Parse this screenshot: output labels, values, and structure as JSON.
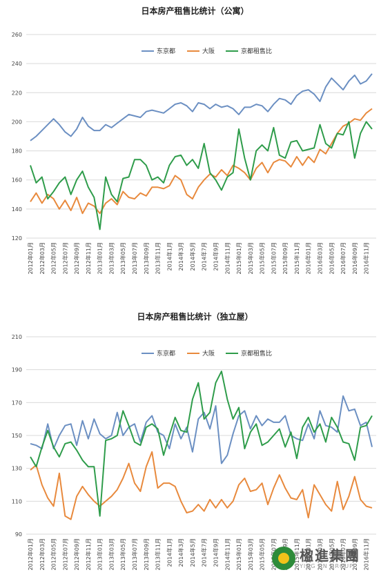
{
  "chart_data": [
    {
      "type": "line",
      "title": "日本房产租售比统计（公寓）",
      "ylim": [
        120,
        260
      ],
      "yticks": [
        120,
        140,
        160,
        180,
        200,
        220,
        240,
        260
      ],
      "grid": true,
      "legend": "top-right",
      "x": [
        "2012年01月",
        "2012年02月",
        "2012年03月",
        "2012年04月",
        "2012年05月",
        "2012年06月",
        "2012年07月",
        "2012年08月",
        "2012年09月",
        "2012年10月",
        "2012年11月",
        "2012年12月",
        "2013年01月",
        "2013年02月",
        "2013年03月",
        "2013年04月",
        "2013年05月",
        "2013年06月",
        "2013年07月",
        "2013年08月",
        "2013年09月",
        "2013年10月",
        "2013年11月",
        "2013年12月",
        "2014年1月",
        "2014年2月",
        "2014年3月",
        "2014年4月",
        "2014年5月",
        "2014年6月",
        "2014年7月",
        "2014年8月",
        "2014年9月",
        "2014年10月",
        "2014年11月",
        "2014年12月",
        "2015年01月",
        "2015年02月",
        "2015年03月",
        "2015年04月",
        "2015年05月",
        "2015年06月",
        "2015年07月",
        "2015年08月",
        "2015年09月",
        "2015年10月",
        "2015年11月",
        "2015年12月",
        "2016年01月",
        "2016年02月",
        "2016年03月",
        "2016年04月",
        "2016年05月",
        "2016年06月",
        "2016年07月",
        "2016年08月",
        "2016年09月",
        "2016年10月",
        "2016年11月",
        "2016年12月"
      ],
      "xtick_labels": [
        "2012年01月",
        "2012年03月",
        "2012年05月",
        "2012年07月",
        "2012年09月",
        "2012年11月",
        "2013年01月",
        "2013年03月",
        "2013年05月",
        "2013年07月",
        "2013年09月",
        "2013年11月",
        "2014年1月",
        "2014年3月",
        "2014年5月",
        "2014年7月",
        "2014年9月",
        "2014年11月",
        "2015年01月",
        "2015年03月",
        "2015年05月",
        "2015年07月",
        "2015年09月",
        "2015年11月",
        "2016年01月",
        "2016年03月",
        "2016年05月",
        "2016年07月",
        "2016年09月",
        "2016年11月"
      ],
      "series": [
        {
          "name": "东京都",
          "color": "#6b8fc2",
          "values": [
            187,
            190,
            194,
            198,
            202,
            198,
            193,
            190,
            195,
            203,
            197,
            194,
            194,
            198,
            196,
            199,
            202,
            205,
            204,
            203,
            207,
            208,
            207,
            206,
            209,
            212,
            213,
            211,
            207,
            213,
            212,
            209,
            212,
            210,
            211,
            209,
            205,
            210,
            210,
            212,
            211,
            207,
            212,
            216,
            215,
            212,
            218,
            221,
            222,
            219,
            214,
            224,
            230,
            226,
            222,
            228,
            232,
            226,
            228,
            233
          ]
        },
        {
          "name": "大阪",
          "color": "#e8893c",
          "values": [
            145,
            151,
            144,
            150,
            147,
            140,
            146,
            139,
            148,
            137,
            144,
            142,
            137,
            144,
            147,
            143,
            152,
            148,
            147,
            151,
            149,
            155,
            155,
            154,
            156,
            163,
            160,
            150,
            147,
            155,
            160,
            164,
            162,
            167,
            163,
            170,
            168,
            165,
            160,
            168,
            172,
            165,
            172,
            174,
            173,
            169,
            176,
            170,
            176,
            172,
            181,
            178,
            185,
            192,
            197,
            199,
            202,
            201,
            206,
            209
          ]
        },
        {
          "name": "京都租售比",
          "color": "#2e9c4a",
          "values": [
            170,
            158,
            162,
            147,
            152,
            158,
            162,
            150,
            160,
            166,
            155,
            148,
            126,
            162,
            150,
            145,
            161,
            162,
            174,
            174,
            170,
            160,
            162,
            158,
            170,
            176,
            177,
            170,
            174,
            168,
            185,
            165,
            160,
            153,
            162,
            165,
            195,
            175,
            160,
            180,
            184,
            180,
            196,
            177,
            175,
            186,
            187,
            180,
            181,
            182,
            198,
            185,
            182,
            192,
            191,
            200,
            175,
            192,
            200,
            195
          ]
        }
      ]
    },
    {
      "type": "line",
      "title": "日本房产租售比统计（独立屋）",
      "ylim": [
        90,
        210
      ],
      "yticks": [
        90,
        110,
        130,
        150,
        170,
        190,
        210
      ],
      "grid": true,
      "legend": "top-right",
      "x": [
        "2012年01月",
        "2012年02月",
        "2012年03月",
        "2012年04月",
        "2012年05月",
        "2012年06月",
        "2012年07月",
        "2012年08月",
        "2012年09月",
        "2012年10月",
        "2012年11月",
        "2012年12月",
        "2013年01月",
        "2013年02月",
        "2013年03月",
        "2013年04月",
        "2013年05月",
        "2013年06月",
        "2013年07月",
        "2013年08月",
        "2013年09月",
        "2013年10月",
        "2013年11月",
        "2013年12月",
        "2014年1月",
        "2014年2月",
        "2014年3月",
        "2014年4月",
        "2014年5月",
        "2014年6月",
        "2014年7月",
        "2014年8月",
        "2014年9月",
        "2014年10月",
        "2014年11月",
        "2014年12月",
        "2015年01月",
        "2015年02月",
        "2015年03月",
        "2015年04月",
        "2015年05月",
        "2015年06月",
        "2015年07月",
        "2015年08月",
        "2015年09月",
        "2015年10月",
        "2015年11月",
        "2015年12月",
        "2016年01月",
        "2016年02月",
        "2016年03月",
        "2016年04月",
        "2016年05月",
        "2016年06月",
        "2016年07月",
        "2016年08月",
        "2016年09月",
        "2016年10月",
        "2016年11月",
        "2016年12月"
      ],
      "xtick_labels": [
        "2012年01月",
        "2012年03月",
        "2012年05月",
        "2012年07月",
        "2012年09月",
        "2012年11月",
        "2013年01月",
        "2013年03月",
        "2013年05月",
        "2013年07月",
        "2013年09月",
        "2013年11月",
        "2014年1月",
        "2014年3月",
        "2014年5月",
        "2014年7月",
        "2014年9月",
        "2014年11月",
        "2015年01月",
        "2015年03月",
        "2015年05月",
        "2015年07月",
        "2015年09月",
        "2015年11月",
        "2016年01月",
        "2016年03月",
        "2016年05月",
        "2016年07月",
        "2016年09月",
        "2016年11月"
      ],
      "series": [
        {
          "name": "东京都",
          "color": "#6b8fc2",
          "values": [
            145,
            144,
            142,
            157,
            142,
            150,
            156,
            157,
            144,
            159,
            148,
            160,
            151,
            148,
            150,
            164,
            150,
            155,
            157,
            146,
            158,
            162,
            152,
            150,
            142,
            157,
            148,
            155,
            140,
            160,
            164,
            154,
            168,
            133,
            138,
            151,
            162,
            165,
            154,
            162,
            156,
            160,
            158,
            158,
            162,
            150,
            148,
            147,
            157,
            148,
            165,
            156,
            155,
            152,
            174,
            165,
            166,
            156,
            158,
            143
          ]
        },
        {
          "name": "大阪",
          "color": "#e8893c",
          "values": [
            129,
            132,
            120,
            112,
            107,
            127,
            101,
            99,
            113,
            119,
            114,
            110,
            107,
            110,
            113,
            117,
            124,
            133,
            121,
            116,
            131,
            140,
            118,
            121,
            121,
            119,
            110,
            103,
            104,
            108,
            104,
            111,
            106,
            111,
            106,
            110,
            120,
            124,
            116,
            117,
            121,
            108,
            118,
            126,
            118,
            112,
            111,
            117,
            100,
            120,
            114,
            108,
            104,
            122,
            105,
            113,
            125,
            111,
            107,
            106
          ]
        },
        {
          "name": "京都租售比",
          "color": "#2e9c4a",
          "values": [
            137,
            131,
            143,
            153,
            143,
            137,
            145,
            146,
            141,
            135,
            131,
            131,
            101,
            147,
            148,
            150,
            165,
            156,
            146,
            144,
            155,
            157,
            154,
            138,
            150,
            161,
            153,
            152,
            172,
            182,
            160,
            164,
            182,
            189,
            172,
            160,
            167,
            142,
            152,
            157,
            144,
            146,
            150,
            154,
            143,
            152,
            136,
            155,
            161,
            152,
            157,
            146,
            161,
            155,
            146,
            145,
            135,
            155,
            156,
            162
          ]
        }
      ]
    }
  ]
}
